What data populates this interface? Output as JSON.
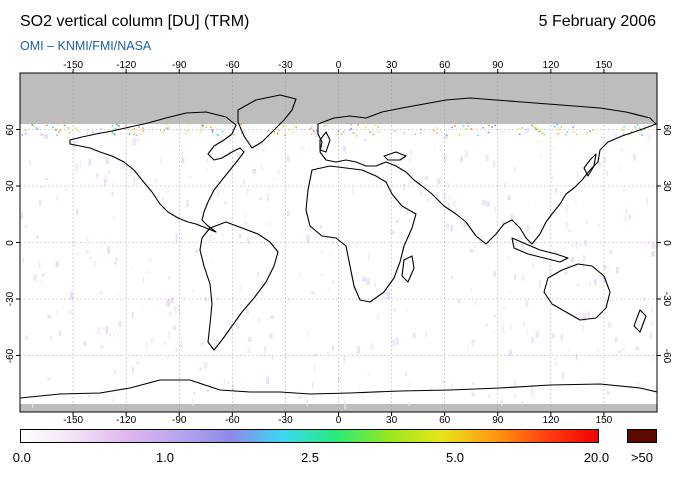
{
  "header": {
    "title": "SO2 vertical column [DU] (TRM)",
    "date": "5 February 2006",
    "subtitle": "OMI  –  KNMI/FMI/NASA"
  },
  "map": {
    "projection": "equirectangular",
    "lon_range": [
      -180,
      180
    ],
    "lat_range": [
      -90,
      90
    ],
    "lon_ticks": [
      "-150",
      "-120",
      "-90",
      "-60",
      "-30",
      "0",
      "30",
      "60",
      "90",
      "120",
      "150"
    ],
    "lat_ticks": [
      "60",
      "30",
      "0",
      "-30",
      "-60"
    ],
    "polar_night_gray_above_lat": 65,
    "gray_color": "#bdbdbd",
    "coastline_color": "#000000"
  },
  "colorbar": {
    "labels": [
      "0.0",
      "1.0",
      "2.5",
      "5.0",
      "20.0",
      ">50"
    ],
    "over_color": "#5a0a00",
    "colors": [
      "#ffffff",
      "#f3e3f7",
      "#e2b7ef",
      "#b8a6ef",
      "#8c8ae6",
      "#3ad8f0",
      "#28ea7a",
      "#96e81e",
      "#e6e61a",
      "#ff9a10",
      "#ff4010",
      "#ee0000"
    ]
  }
}
